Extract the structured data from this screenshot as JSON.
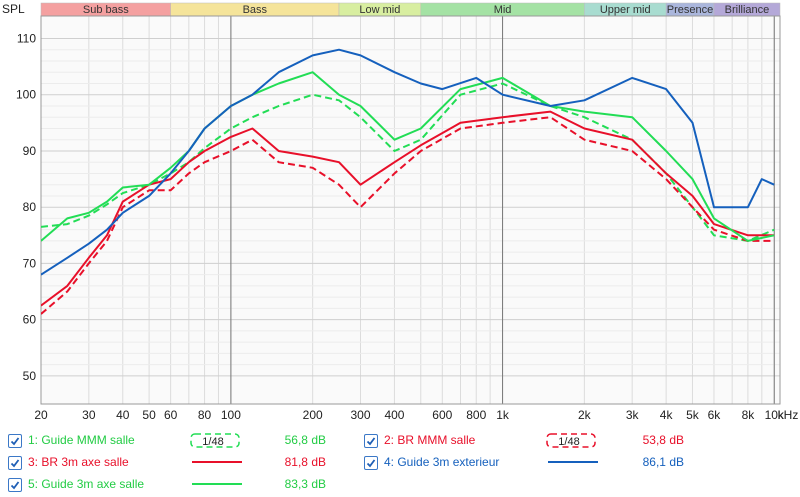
{
  "chart_data": {
    "type": "line",
    "ylabel": "SPL",
    "xunit": "kHz",
    "xscale": "log",
    "xlim": [
      20,
      10500
    ],
    "ylim": [
      45,
      114
    ],
    "grid": true,
    "xticks": [
      {
        "v": 20,
        "t": "20"
      },
      {
        "v": 30,
        "t": "30"
      },
      {
        "v": 40,
        "t": "40"
      },
      {
        "v": 50,
        "t": "50"
      },
      {
        "v": 60,
        "t": "60"
      },
      {
        "v": 80,
        "t": "80"
      },
      {
        "v": 100,
        "t": "100"
      },
      {
        "v": 200,
        "t": "200"
      },
      {
        "v": 300,
        "t": "300"
      },
      {
        "v": 400,
        "t": "400"
      },
      {
        "v": 600,
        "t": "600"
      },
      {
        "v": 800,
        "t": "800"
      },
      {
        "v": 1000,
        "t": "1k"
      },
      {
        "v": 2000,
        "t": "2k"
      },
      {
        "v": 3000,
        "t": "3k"
      },
      {
        "v": 4000,
        "t": "4k"
      },
      {
        "v": 5000,
        "t": "5k"
      },
      {
        "v": 6000,
        "t": "6k"
      },
      {
        "v": 8000,
        "t": "8k"
      },
      {
        "v": 10000,
        "t": "10k"
      }
    ],
    "yticks": [
      50,
      60,
      70,
      80,
      90,
      100,
      110
    ],
    "bands": [
      {
        "label": "Sub bass",
        "from": 20,
        "to": 60,
        "color": "#f4a0a0"
      },
      {
        "label": "Bass",
        "from": 60,
        "to": 250,
        "color": "#f5e49a"
      },
      {
        "label": "Low mid",
        "from": 250,
        "to": 500,
        "color": "#d8eea0"
      },
      {
        "label": "Mid",
        "from": 500,
        "to": 2000,
        "color": "#a4e2a4"
      },
      {
        "label": "Upper mid",
        "from": 2000,
        "to": 4000,
        "color": "#a8dcd0"
      },
      {
        "label": "Presence",
        "from": 4000,
        "to": 6000,
        "color": "#aab6dc"
      },
      {
        "label": "Brilliance",
        "from": 6000,
        "to": 10500,
        "color": "#b4a8d8"
      }
    ],
    "series": [
      {
        "name": "1: Guide MMM salle",
        "value": "56,8 dB",
        "color": "#22dd55",
        "dash": true,
        "smoothing": "1/48",
        "points": [
          [
            20,
            76.5
          ],
          [
            25,
            77
          ],
          [
            30,
            78.5
          ],
          [
            35,
            80.5
          ],
          [
            40,
            82.5
          ],
          [
            50,
            84
          ],
          [
            60,
            86
          ],
          [
            70,
            88
          ],
          [
            80,
            90.5
          ],
          [
            100,
            94
          ],
          [
            120,
            96
          ],
          [
            150,
            98
          ],
          [
            200,
            100
          ],
          [
            250,
            99
          ],
          [
            300,
            96
          ],
          [
            400,
            90
          ],
          [
            500,
            92
          ],
          [
            700,
            100
          ],
          [
            1000,
            102
          ],
          [
            1500,
            98
          ],
          [
            2000,
            96
          ],
          [
            3000,
            92
          ],
          [
            4000,
            86
          ],
          [
            5000,
            80
          ],
          [
            6000,
            75
          ],
          [
            8000,
            74
          ],
          [
            10000,
            76
          ]
        ]
      },
      {
        "name": "2: BR MMM salle",
        "value": "53,8 dB",
        "color": "#e8102a",
        "dash": true,
        "smoothing": "1/48",
        "points": [
          [
            20,
            61
          ],
          [
            25,
            65
          ],
          [
            30,
            70
          ],
          [
            35,
            74
          ],
          [
            40,
            80
          ],
          [
            50,
            83
          ],
          [
            60,
            83
          ],
          [
            70,
            86
          ],
          [
            80,
            88
          ],
          [
            100,
            90
          ],
          [
            120,
            92
          ],
          [
            150,
            88
          ],
          [
            200,
            87
          ],
          [
            250,
            84
          ],
          [
            300,
            80
          ],
          [
            400,
            86
          ],
          [
            500,
            90
          ],
          [
            700,
            94
          ],
          [
            1000,
            95
          ],
          [
            1500,
            96
          ],
          [
            2000,
            92
          ],
          [
            3000,
            90
          ],
          [
            4000,
            85
          ],
          [
            5000,
            80
          ],
          [
            6000,
            76
          ],
          [
            8000,
            74
          ],
          [
            10000,
            74
          ]
        ]
      },
      {
        "name": "3: BR 3m axe salle",
        "value": "81,8 dB",
        "color": "#e8102a",
        "dash": false,
        "points": [
          [
            20,
            62.5
          ],
          [
            25,
            66
          ],
          [
            30,
            71
          ],
          [
            35,
            75
          ],
          [
            40,
            81
          ],
          [
            50,
            84
          ],
          [
            60,
            85
          ],
          [
            70,
            88
          ],
          [
            80,
            90
          ],
          [
            100,
            92.5
          ],
          [
            120,
            94
          ],
          [
            150,
            90
          ],
          [
            200,
            89
          ],
          [
            250,
            88
          ],
          [
            300,
            84
          ],
          [
            400,
            88
          ],
          [
            500,
            91
          ],
          [
            700,
            95
          ],
          [
            1000,
            96
          ],
          [
            1500,
            97
          ],
          [
            2000,
            94
          ],
          [
            3000,
            92
          ],
          [
            4000,
            86
          ],
          [
            5000,
            82
          ],
          [
            6000,
            77
          ],
          [
            8000,
            75
          ],
          [
            10000,
            75
          ]
        ]
      },
      {
        "name": "4: Guide 3m exterieur",
        "value": "86,1 dB",
        "color": "#1560bd",
        "dash": false,
        "points": [
          [
            20,
            68
          ],
          [
            25,
            71
          ],
          [
            30,
            73.5
          ],
          [
            35,
            76
          ],
          [
            40,
            79
          ],
          [
            50,
            82
          ],
          [
            60,
            86
          ],
          [
            70,
            90
          ],
          [
            80,
            94
          ],
          [
            100,
            98
          ],
          [
            120,
            100
          ],
          [
            150,
            104
          ],
          [
            200,
            107
          ],
          [
            250,
            108
          ],
          [
            300,
            107
          ],
          [
            400,
            104
          ],
          [
            500,
            102
          ],
          [
            600,
            101
          ],
          [
            800,
            103
          ],
          [
            1000,
            100
          ],
          [
            1500,
            98
          ],
          [
            2000,
            99
          ],
          [
            3000,
            103
          ],
          [
            4000,
            101
          ],
          [
            5000,
            95
          ],
          [
            6000,
            80
          ],
          [
            8000,
            80
          ],
          [
            9000,
            85
          ],
          [
            10000,
            84
          ]
        ]
      },
      {
        "name": "5: Guide 3m axe salle",
        "value": "83,3 dB",
        "color": "#22dd55",
        "dash": false,
        "points": [
          [
            20,
            74
          ],
          [
            25,
            78
          ],
          [
            30,
            79
          ],
          [
            35,
            81
          ],
          [
            40,
            83.5
          ],
          [
            50,
            84
          ],
          [
            60,
            87
          ],
          [
            70,
            90
          ],
          [
            80,
            94
          ],
          [
            100,
            98
          ],
          [
            120,
            100
          ],
          [
            150,
            102
          ],
          [
            200,
            104
          ],
          [
            250,
            100
          ],
          [
            300,
            98
          ],
          [
            400,
            92
          ],
          [
            500,
            94
          ],
          [
            700,
            101
          ],
          [
            1000,
            103
          ],
          [
            1500,
            98
          ],
          [
            2000,
            97
          ],
          [
            3000,
            96
          ],
          [
            4000,
            90
          ],
          [
            5000,
            85
          ],
          [
            6000,
            78
          ],
          [
            8000,
            74
          ],
          [
            10000,
            75
          ]
        ]
      }
    ]
  },
  "legend": {
    "items": [
      {
        "label": "1: Guide MMM salle",
        "value": "56,8 dB",
        "smoothing": "1/48"
      },
      {
        "label": "2: BR MMM salle",
        "value": "53,8 dB",
        "smoothing": "1/48"
      },
      {
        "label": "3: BR 3m axe salle",
        "value": "81,8 dB"
      },
      {
        "label": "4: Guide 3m exterieur",
        "value": "86,1 dB"
      },
      {
        "label": "5: Guide 3m axe salle",
        "value": "83,3 dB"
      }
    ]
  },
  "colors": {
    "green": "#22dd55",
    "red": "#e8102a",
    "blue": "#1560bd",
    "checkbox": "#3b78c7"
  }
}
